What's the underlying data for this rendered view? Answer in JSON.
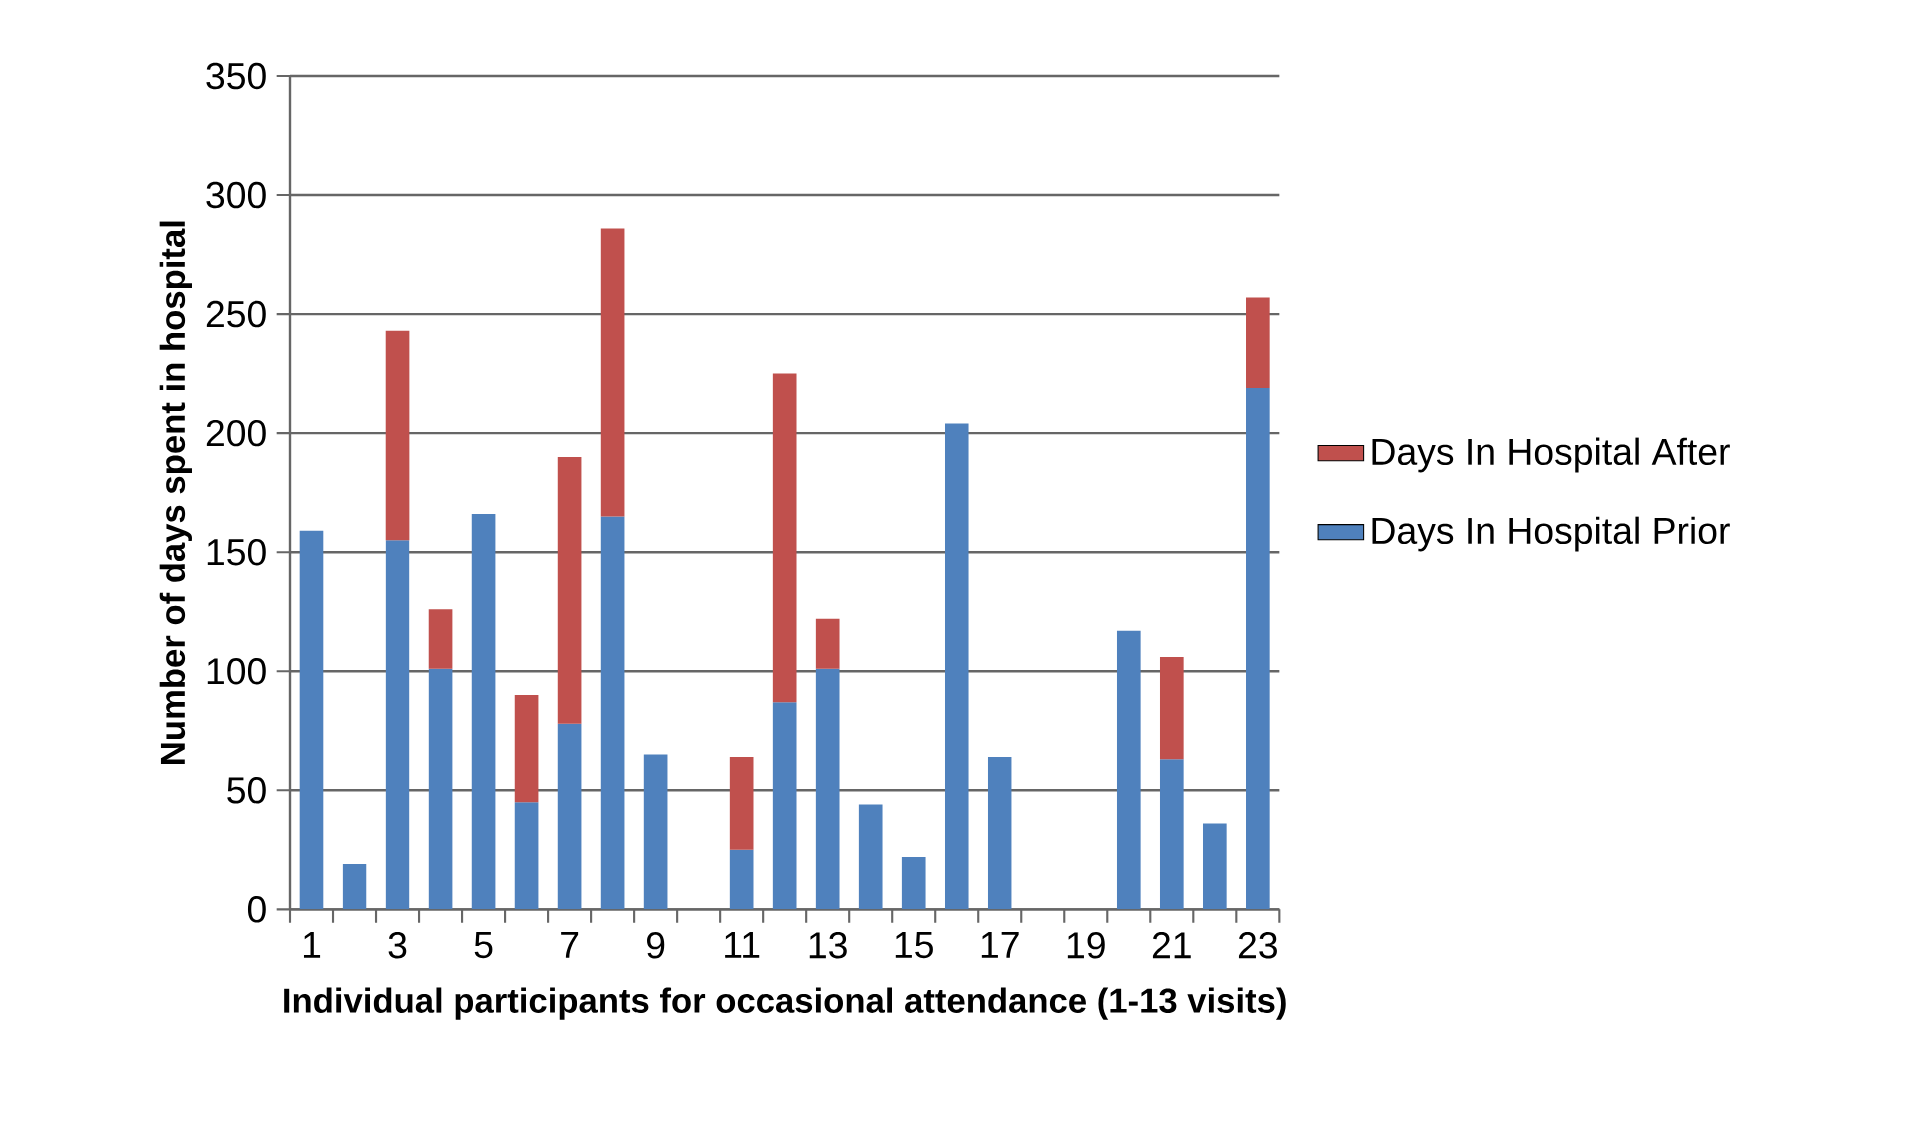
{
  "chart_data": {
    "type": "bar",
    "stacked": true,
    "xlabel": "Individual participants for occasional attendance (1-13 visits)",
    "ylabel": "Number of days spent in hospital",
    "categories": [
      "1",
      null,
      "3",
      null,
      "5",
      null,
      "7",
      null,
      "9",
      null,
      "11",
      null,
      "13",
      null,
      "15",
      null,
      "17",
      null,
      "19",
      null,
      "21",
      null,
      "23"
    ],
    "series": [
      {
        "name": "Days In Hospital Prior",
        "color": "#4f81bd",
        "values": [
          159,
          19,
          155,
          101,
          166,
          45,
          78,
          165,
          65,
          null,
          25,
          87,
          101,
          44,
          22,
          204,
          64,
          null,
          null,
          117,
          63,
          36,
          219
        ]
      },
      {
        "name": "Days In Hospital After",
        "color": "#c0504d",
        "values": [
          null,
          null,
          88,
          25,
          null,
          45,
          112,
          121,
          null,
          null,
          39,
          138,
          21,
          null,
          null,
          null,
          null,
          null,
          null,
          null,
          43,
          null,
          38
        ]
      }
    ],
    "ylim": [
      0,
      350
    ],
    "yticks": [
      0,
      50,
      100,
      150,
      200,
      250,
      300,
      350
    ],
    "grid": "y",
    "legend": "right"
  }
}
